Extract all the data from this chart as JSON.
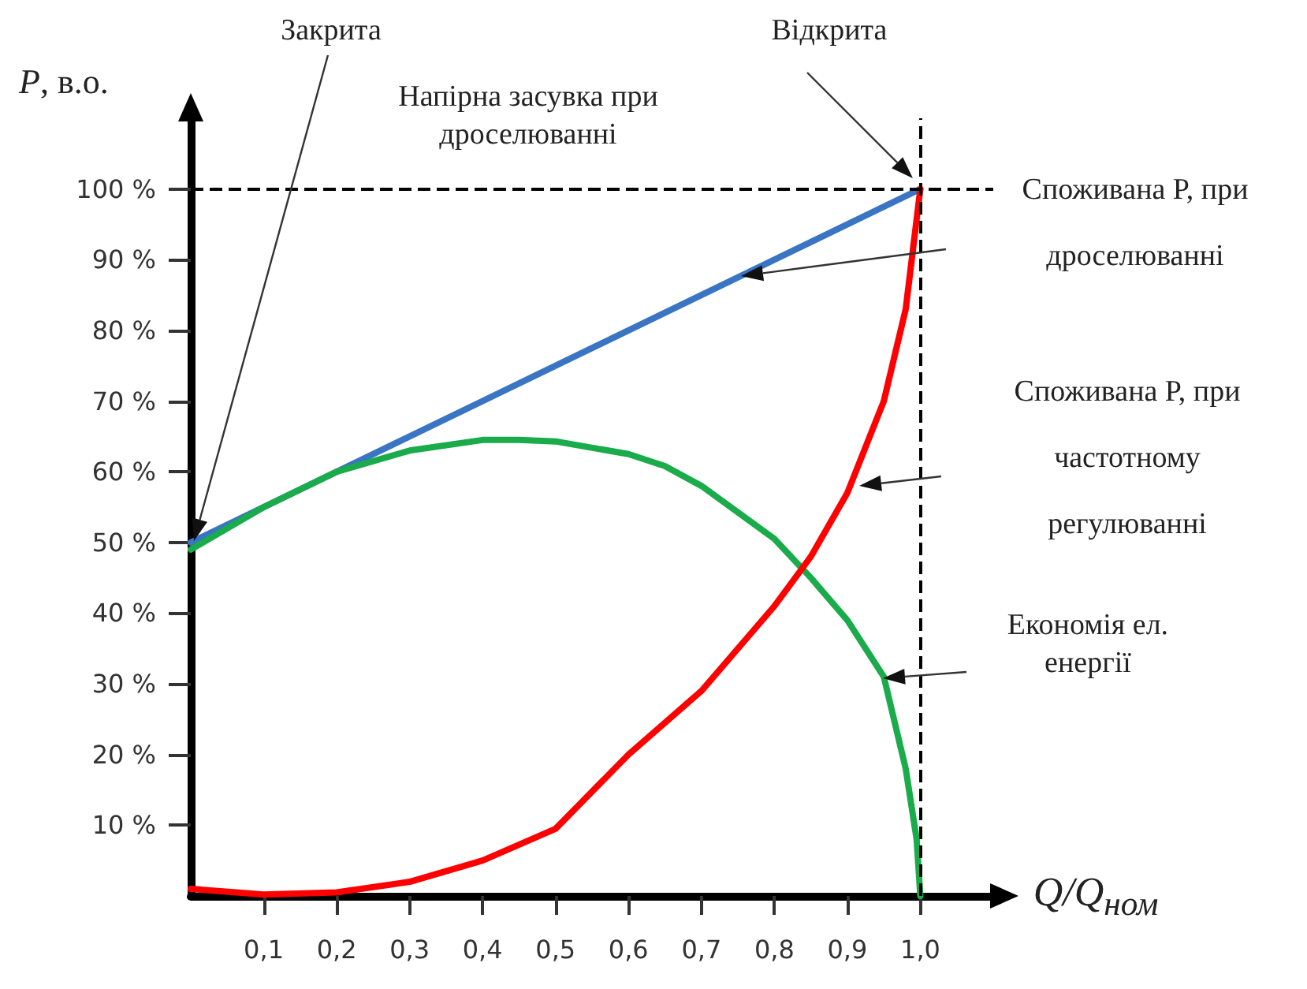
{
  "chart_data": {
    "type": "line",
    "ylabel": "P, в.о.",
    "xlabel": "Q/Q$_{ном}$",
    "xlim": [
      0,
      1.1
    ],
    "ylim": [
      0,
      110
    ],
    "xticks": [
      {
        "value": 0.1,
        "label": "0,1"
      },
      {
        "value": 0.2,
        "label": "0,2"
      },
      {
        "value": 0.3,
        "label": "0,3"
      },
      {
        "value": 0.4,
        "label": "0,4"
      },
      {
        "value": 0.5,
        "label": "0,5"
      },
      {
        "value": 0.6,
        "label": "0,6"
      },
      {
        "value": 0.7,
        "label": "0,7"
      },
      {
        "value": 0.8,
        "label": "0,8"
      },
      {
        "value": 0.9,
        "label": "0,9"
      },
      {
        "value": 1.0,
        "label": "1,0"
      }
    ],
    "yticks": [
      {
        "value": 10,
        "label": "10 %"
      },
      {
        "value": 20,
        "label": "20 %"
      },
      {
        "value": 30,
        "label": "30 %"
      },
      {
        "value": 40,
        "label": "40 %"
      },
      {
        "value": 50,
        "label": "50 %"
      },
      {
        "value": 60,
        "label": "60 %"
      },
      {
        "value": 70,
        "label": "70 %"
      },
      {
        "value": 80,
        "label": "80 %"
      },
      {
        "value": 90,
        "label": "90 %"
      },
      {
        "value": 100,
        "label": "100 %"
      }
    ],
    "grid": false,
    "marker": "none",
    "line_style": "solid",
    "series": [
      {
        "color": "#3a75c4",
        "x": [
          0,
          1.0
        ],
        "values": [
          50,
          100
        ]
      },
      {
        "color": "#1aab4b",
        "x": [
          0,
          0.1,
          0.2,
          0.3,
          0.4,
          0.45,
          0.5,
          0.6,
          0.65,
          0.7,
          0.8,
          0.85,
          0.9,
          0.95,
          0.98,
          0.995,
          1.0
        ],
        "values": [
          49,
          55,
          60,
          63,
          64.5,
          64.5,
          64.3,
          62.5,
          60.8,
          58,
          50.5,
          45,
          39,
          31,
          18,
          8,
          0
        ]
      },
      {
        "color": "#ff0000",
        "x": [
          0,
          0.1,
          0.2,
          0.3,
          0.4,
          0.5,
          0.6,
          0.7,
          0.8,
          0.85,
          0.9,
          0.95,
          0.98,
          1.0
        ],
        "values": [
          1,
          0.2,
          0.5,
          2,
          5,
          9.5,
          20,
          29,
          41,
          48,
          57,
          70,
          83,
          100
        ]
      }
    ],
    "ref_lines": [
      {
        "axis": "y",
        "value": 100,
        "color": "#000000",
        "line_style": "dashed"
      },
      {
        "axis": "x",
        "value": 1.0,
        "color": "#000000",
        "line_style": "dashed"
      }
    ],
    "annotations": [
      "Закрита",
      "Відкрита",
      "Напірна засувка при дроселюванні",
      "Споживана P, при дроселюванні",
      "Споживана P, при частотному регулюванні",
      "Економія ел. енергії"
    ]
  }
}
